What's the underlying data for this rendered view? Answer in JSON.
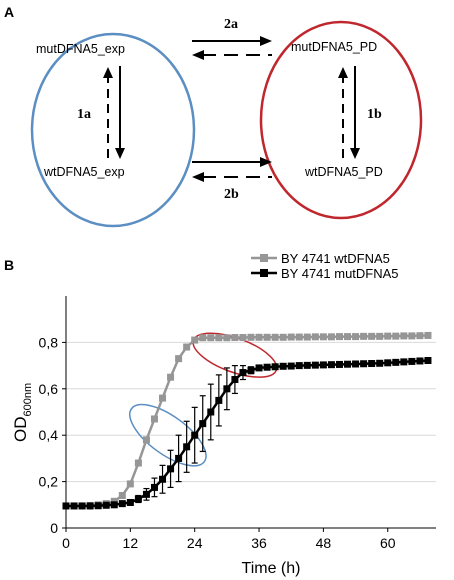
{
  "panel_a": {
    "label": "A",
    "left_top": "mutDFNA5_exp",
    "left_bottom": "wtDFNA5_exp",
    "right_top": "mutDFNA5_PD",
    "right_bottom": "wtDFNA5_PD",
    "arrow_1a": "1a",
    "arrow_1b": "1b",
    "arrow_2a": "2a",
    "arrow_2b": "2b",
    "left_circle_color": "#5b8ec2",
    "right_circle_color": "#c0272d"
  },
  "panel_b": {
    "label": "B"
  },
  "chart_data": {
    "type": "line",
    "xlabel": "Time (h)",
    "ylabel_main": "OD",
    "ylabel_sub": "600nm",
    "xlim": [
      0,
      69
    ],
    "ylim": [
      0,
      1.0
    ],
    "xticks": [
      0,
      12,
      24,
      36,
      48,
      60
    ],
    "xtick_labels": [
      "0",
      "12",
      "24",
      "36",
      "48",
      "60"
    ],
    "yticks": [
      0,
      0.2,
      0.4,
      0.6,
      0.8
    ],
    "ytick_labels": [
      "0",
      "0,2",
      "0,4",
      "0,6",
      "0,8"
    ],
    "legend_position": "top-right",
    "series": [
      {
        "name": "BY 4741 wtDFNA5",
        "color": "#969696",
        "x": [
          0,
          1.5,
          3,
          4.5,
          6,
          7.5,
          9,
          10.5,
          12,
          13.5,
          15,
          16.5,
          18,
          19.5,
          21,
          22.5,
          24,
          25.5,
          27,
          28.5,
          30,
          31.5,
          33,
          34.5,
          36,
          37.5,
          39,
          40.5,
          42,
          43.5,
          45,
          46.5,
          48,
          49.5,
          51,
          52.5,
          54,
          55.5,
          57,
          58.5,
          60,
          61.5,
          63,
          64.5,
          66,
          67.5
        ],
        "y": [
          0.095,
          0.095,
          0.095,
          0.097,
          0.1,
          0.105,
          0.115,
          0.14,
          0.19,
          0.28,
          0.38,
          0.47,
          0.56,
          0.65,
          0.73,
          0.78,
          0.81,
          0.82,
          0.82,
          0.82,
          0.82,
          0.821,
          0.821,
          0.822,
          0.822,
          0.822,
          0.822,
          0.822,
          0.823,
          0.823,
          0.823,
          0.824,
          0.824,
          0.824,
          0.825,
          0.825,
          0.825,
          0.826,
          0.826,
          0.826,
          0.827,
          0.827,
          0.828,
          0.828,
          0.829,
          0.83
        ],
        "err": []
      },
      {
        "name": "BY 4741 mutDFNA5",
        "color": "#000000",
        "x": [
          0,
          1.5,
          3,
          4.5,
          6,
          7.5,
          9,
          10.5,
          12,
          13.5,
          15,
          16.5,
          18,
          19.5,
          21,
          22.5,
          24,
          25.5,
          27,
          28.5,
          30,
          31.5,
          33,
          34.5,
          36,
          37.5,
          39,
          40.5,
          42,
          43.5,
          45,
          46.5,
          48,
          49.5,
          51,
          52.5,
          54,
          55.5,
          57,
          58.5,
          60,
          61.5,
          63,
          64.5,
          66,
          67.5
        ],
        "y": [
          0.095,
          0.095,
          0.095,
          0.095,
          0.096,
          0.098,
          0.1,
          0.105,
          0.11,
          0.125,
          0.145,
          0.175,
          0.21,
          0.255,
          0.3,
          0.35,
          0.4,
          0.45,
          0.5,
          0.55,
          0.6,
          0.64,
          0.67,
          0.68,
          0.69,
          0.693,
          0.695,
          0.697,
          0.698,
          0.7,
          0.701,
          0.702,
          0.703,
          0.704,
          0.705,
          0.706,
          0.707,
          0.708,
          0.709,
          0.71,
          0.712,
          0.714,
          0.716,
          0.718,
          0.72,
          0.722
        ],
        "err": [
          0,
          0,
          0,
          0,
          0,
          0,
          0,
          0,
          0.01,
          0.015,
          0.025,
          0.04,
          0.06,
          0.08,
          0.1,
          0.11,
          0.12,
          0.12,
          0.12,
          0.11,
          0.09,
          0.06,
          0.03,
          0.015,
          0.01,
          0.01,
          0.008,
          0.008,
          0.006,
          0.006,
          0.005,
          0.005,
          0.005,
          0.005,
          0.005,
          0.005,
          0.005,
          0.005,
          0.005,
          0.005,
          0.005,
          0.005,
          0.005,
          0.005,
          0.005,
          0.005
        ]
      }
    ],
    "annotations": [
      {
        "shape": "ellipse",
        "color": "#5b8ec2"
      },
      {
        "shape": "ellipse",
        "color": "#c0272d"
      }
    ]
  }
}
